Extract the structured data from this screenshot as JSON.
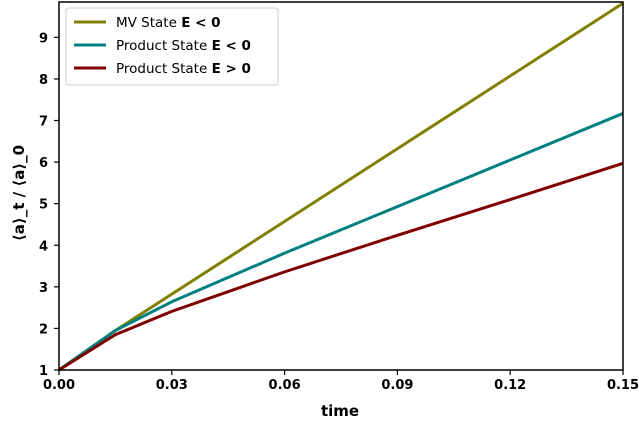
{
  "chart_data": {
    "type": "line",
    "title": "",
    "xlabel": "time",
    "ylabel": "⟨a⟩_t / ⟨a⟩_0",
    "xlim": [
      0.0,
      0.15
    ],
    "ylim": [
      1.0,
      9.85
    ],
    "xticks": [
      0.0,
      0.03,
      0.06,
      0.09,
      0.12,
      0.15
    ],
    "xtick_labels": [
      "0.00",
      "0.03",
      "0.06",
      "0.09",
      "0.12",
      "0.15"
    ],
    "yticks": [
      1,
      2,
      3,
      4,
      5,
      6,
      7,
      8,
      9
    ],
    "ytick_labels": [
      "1",
      "2",
      "3",
      "4",
      "5",
      "6",
      "7",
      "8",
      "9"
    ],
    "grid": false,
    "legend_position": "top-left",
    "series": [
      {
        "name": "MV State",
        "name_math": "E < 0",
        "color": "#808000",
        "x": [
          0.0,
          0.015,
          0.15
        ],
        "y": [
          1.0,
          1.95,
          9.82
        ]
      },
      {
        "name": "Product State",
        "name_math": "E < 0",
        "color": "#008080",
        "x": [
          0.0,
          0.015,
          0.03,
          0.06,
          0.09,
          0.12,
          0.15
        ],
        "y": [
          1.0,
          1.95,
          2.64,
          3.81,
          4.93,
          6.05,
          7.17
        ]
      },
      {
        "name": "Product State",
        "name_math": "E > 0",
        "color": "#800000",
        "x": [
          0.0,
          0.015,
          0.03,
          0.06,
          0.09,
          0.12,
          0.15
        ],
        "y": [
          1.0,
          1.85,
          2.41,
          3.36,
          4.24,
          5.1,
          5.97
        ]
      }
    ]
  }
}
